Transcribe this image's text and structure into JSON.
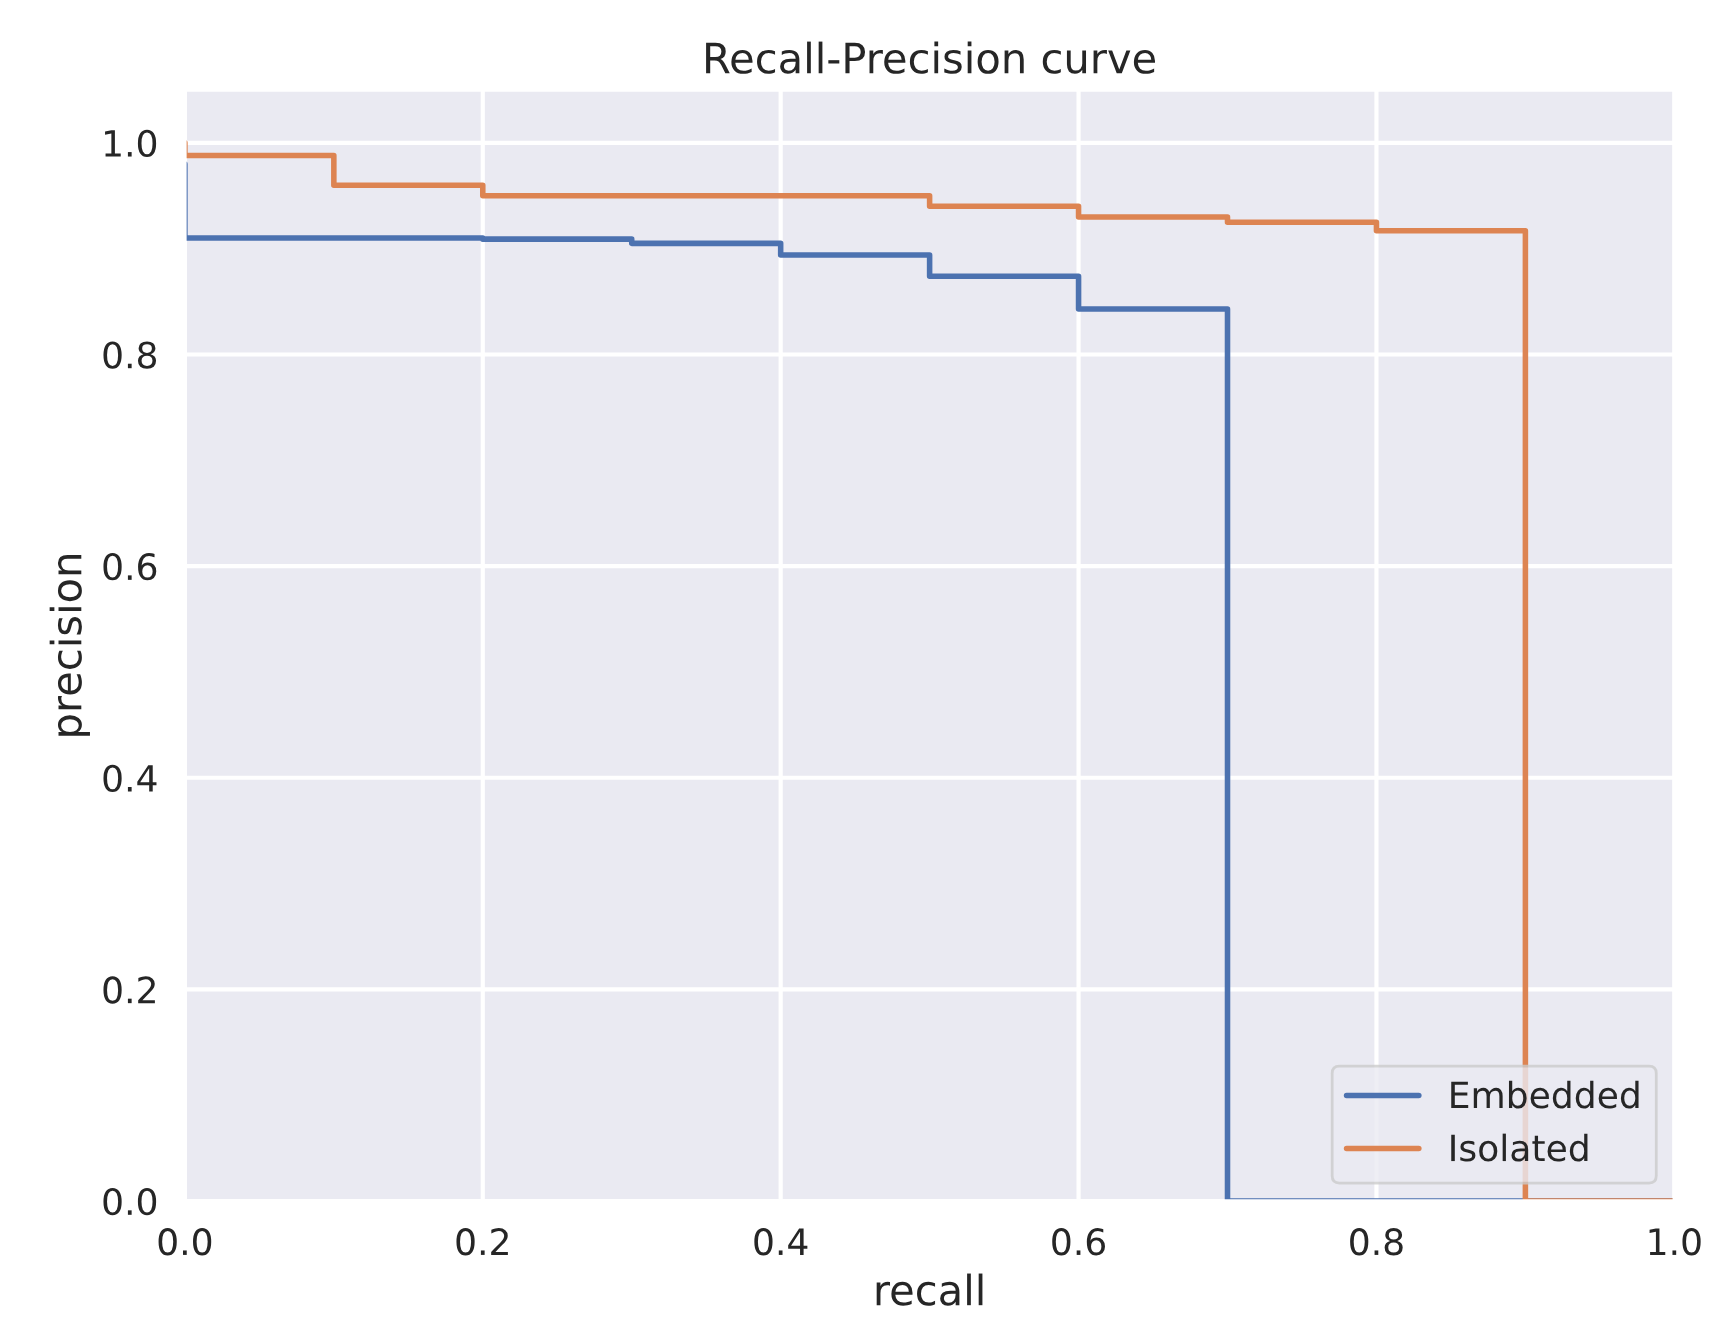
{
  "chart_data": {
    "type": "step",
    "title": "Recall-Precision curve",
    "xlabel": "recall",
    "ylabel": "precision",
    "series": [
      {
        "name": "Embedded",
        "color": "#4c72b0",
        "x": [
          0,
          0,
          0.2,
          0.3,
          0.4,
          0.5,
          0.6,
          0.7,
          1.0
        ],
        "values": [
          0.98,
          0.91,
          0.909,
          0.905,
          0.894,
          0.874,
          0.843,
          0,
          0
        ]
      },
      {
        "name": "Isolated",
        "color": "#dd8452",
        "x": [
          0,
          0,
          0.1,
          0.2,
          0.5,
          0.6,
          0.7,
          0.8,
          0.9,
          1.0
        ],
        "values": [
          1.0,
          0.988,
          0.96,
          0.95,
          0.94,
          0.93,
          0.925,
          0.917,
          0,
          0
        ]
      }
    ],
    "xlim": [
      0,
      1
    ],
    "ylim": [
      0,
      1.05
    ],
    "xticks": [
      {
        "value": 0,
        "label": "0.0"
      },
      0.2,
      0.4,
      0.6,
      0.8,
      {
        "value": 1,
        "label": "1.0"
      }
    ],
    "yticks": [
      {
        "value": 0,
        "label": "0.0"
      },
      0.2,
      0.4,
      0.6,
      0.8,
      {
        "value": 1,
        "label": "1.0"
      }
    ],
    "grid": true,
    "legend": "bottom right",
    "line_style": "solid"
  }
}
